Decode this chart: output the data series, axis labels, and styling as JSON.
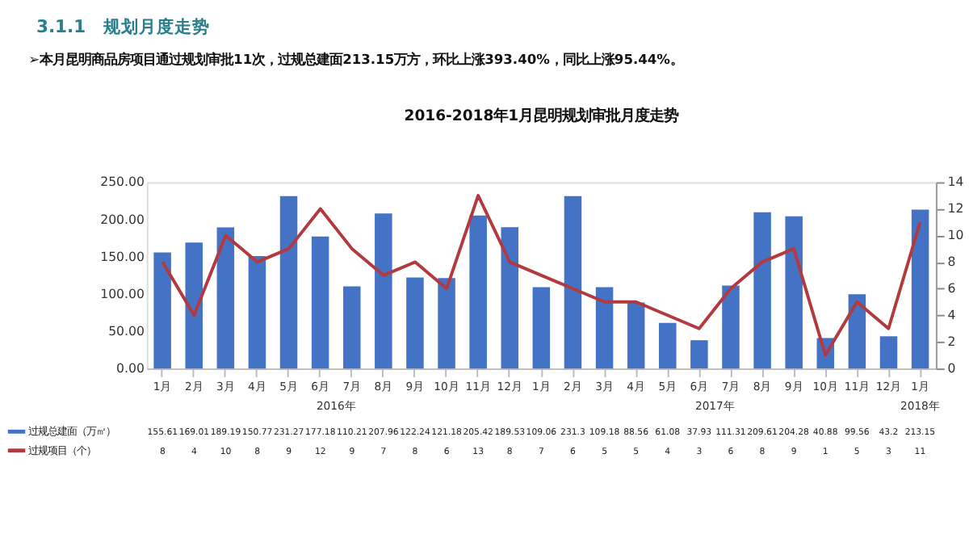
{
  "chart_data": {
    "type": "bar",
    "title": "2016-2018年1月昆明规划审批月度走势",
    "subtitle": "➢本月昆明商品房项目通过规划审批11次，过规总建面213.15万方，环比上涨393.40%，同比上涨95.44%。",
    "annotations": [
      "3.1.1　规划月度走势",
      "2016年",
      "2017年",
      "2018年"
    ],
    "categories": [
      "1月",
      "2月",
      "3月",
      "4月",
      "5月",
      "6月",
      "7月",
      "8月",
      "9月",
      "10月",
      "11月",
      "12月",
      "1月",
      "2月",
      "3月",
      "4月",
      "5月",
      "6月",
      "7月",
      "8月",
      "9月",
      "10月",
      "11月",
      "12月",
      "1月"
    ],
    "series": [
      {
        "name": "过规总建面（万㎡）",
        "color": "#4472c4",
        "values": [
          155.61,
          169.01,
          189.19,
          150.77,
          231.27,
          177.18,
          110.21,
          207.96,
          122.24,
          121.18,
          205.42,
          189.53,
          109.06,
          231.3,
          109.18,
          88.56,
          61.08,
          37.93,
          111.31,
          209.61,
          204.28,
          40.88,
          99.56,
          43.2,
          213.15
        ]
      },
      {
        "name": "过规项目（个）",
        "type": "line",
        "axis": "y2",
        "color": "#b2393e",
        "values": [
          8,
          4,
          10,
          8,
          9,
          12,
          9,
          7,
          8,
          6,
          13,
          8,
          7,
          6,
          5,
          5,
          4,
          3,
          6,
          8,
          9,
          1,
          5,
          3,
          11
        ]
      }
    ],
    "ylim": [
      0,
      250
    ],
    "yticks": [
      {
        "value": 0,
        "label": "0.00"
      },
      {
        "value": 50,
        "label": "50.00"
      },
      {
        "value": 100,
        "label": "100.00"
      },
      {
        "value": 150,
        "label": "150.00"
      },
      {
        "value": 200,
        "label": "200.00"
      },
      {
        "value": 250,
        "label": "250.00"
      }
    ],
    "y2lim": [
      0,
      14
    ],
    "y2ticks": [
      0,
      2,
      4,
      6,
      8,
      10,
      12,
      14
    ],
    "data_labels": true,
    "grid": false,
    "legend": "bottom left",
    "marker": "none",
    "line_style": "solid"
  }
}
